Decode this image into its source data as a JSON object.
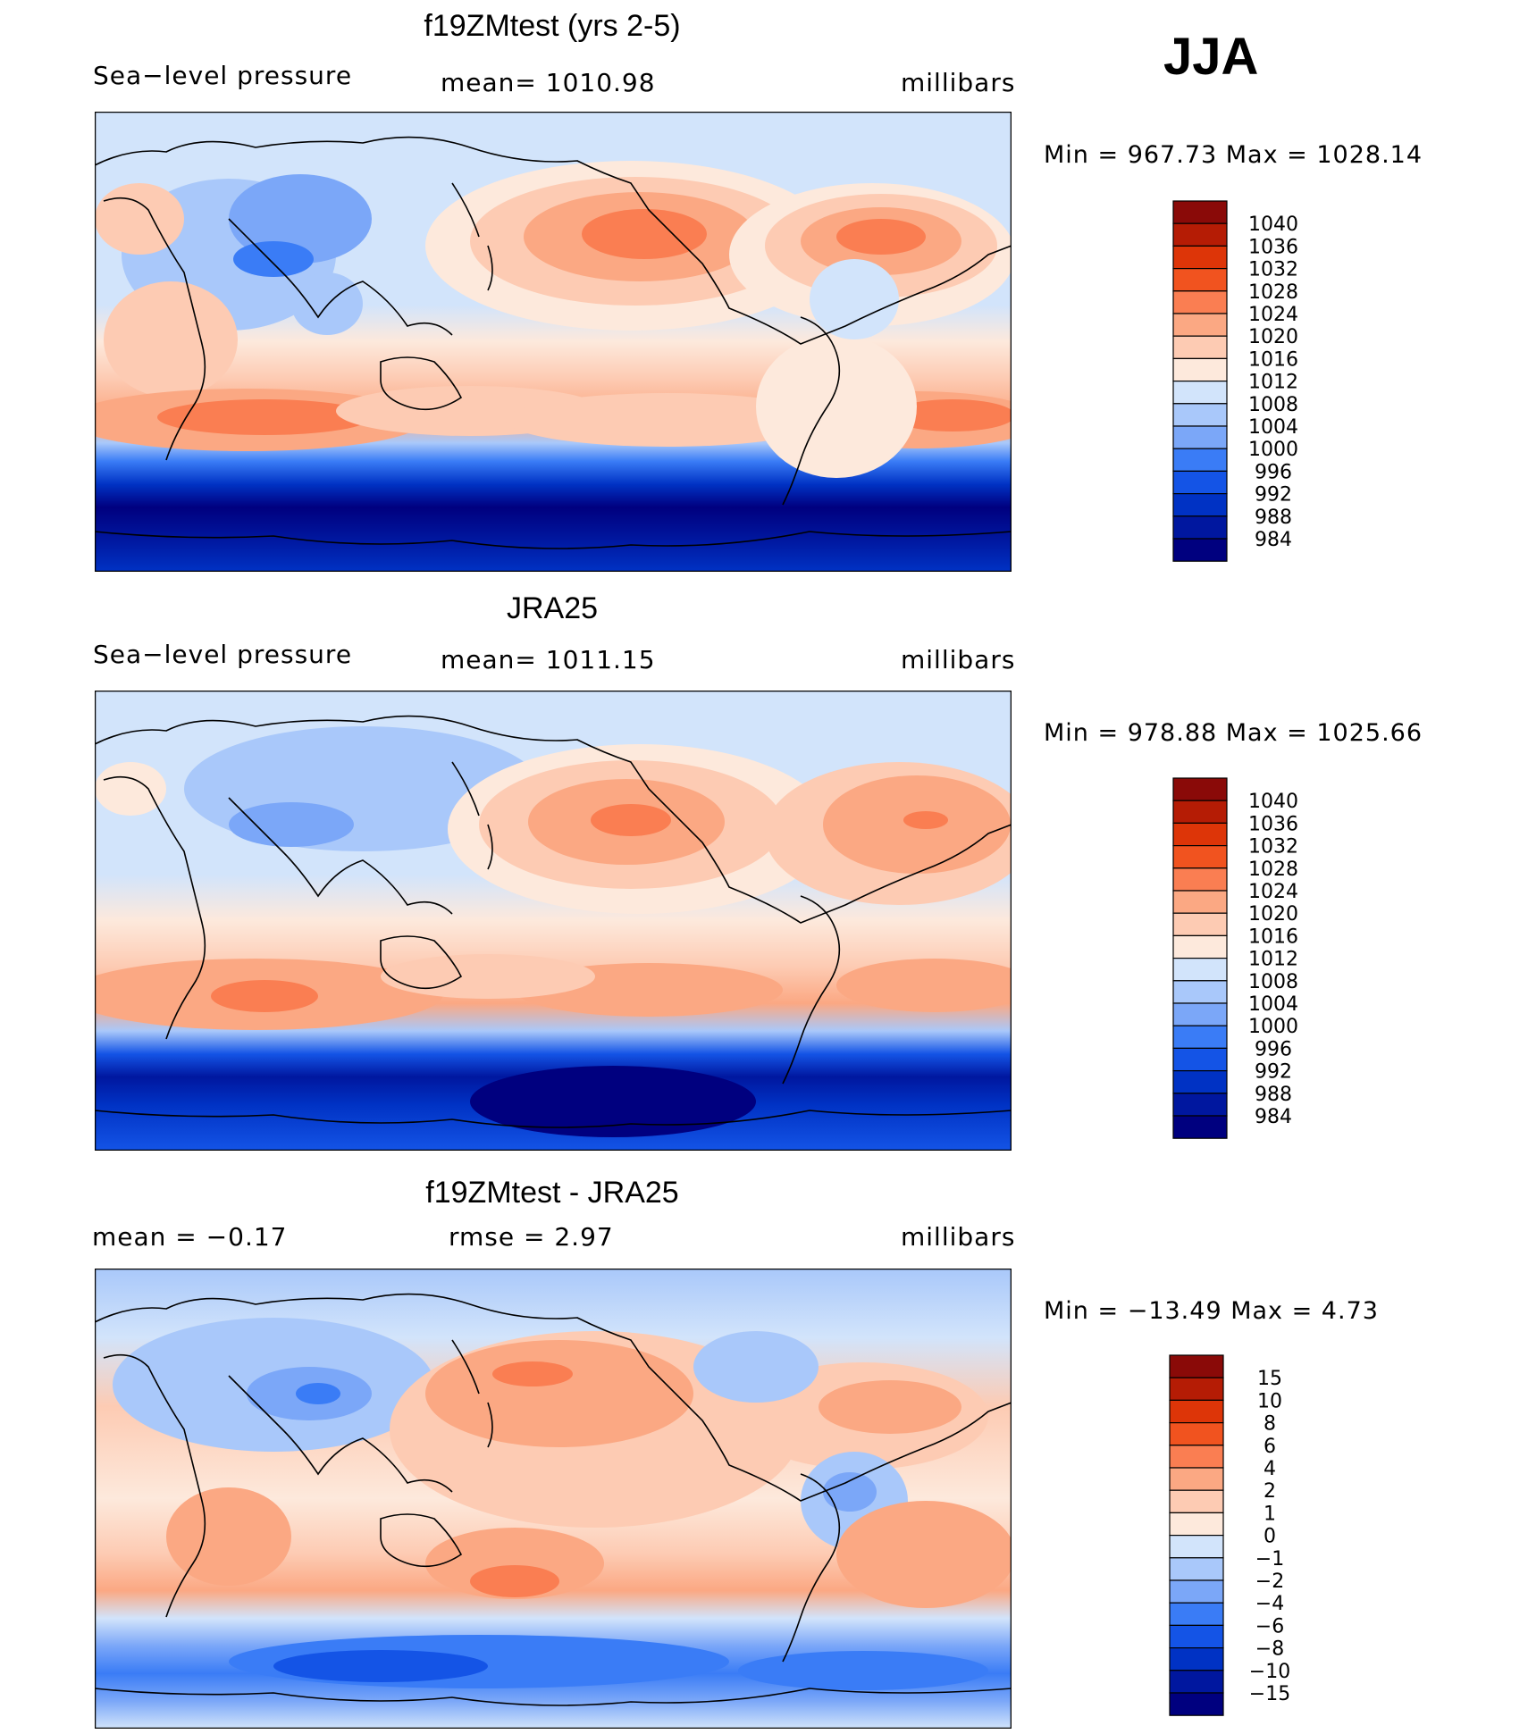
{
  "season": "JJA",
  "palettes": {
    "slp": [
      "#00007f",
      "#00179f",
      "#0032c4",
      "#1454e6",
      "#3a7cf6",
      "#7ba7f8",
      "#a9c8fa",
      "#d2e4fb",
      "#fde9dc",
      "#fdcbb3",
      "#fba883",
      "#fa7e52",
      "#f1531f",
      "#dd3508",
      "#b51c05",
      "#8a0a08"
    ],
    "diff": [
      "#00007f",
      "#00179f",
      "#0032c4",
      "#1454e6",
      "#3a7cf6",
      "#7ba7f8",
      "#a9c8fa",
      "#d2e4fb",
      "#fde9dc",
      "#fdcbb3",
      "#fba883",
      "#fa7e52",
      "#f1531f",
      "#dd3508",
      "#b51c05",
      "#8a0a08"
    ]
  },
  "panels": [
    {
      "title": "f19ZMtest (yrs 2-5)",
      "left_label": "Sea−level pressure",
      "center_label": "mean=  1010.98",
      "units": "millibars",
      "minmax": "Min  =  967.73  Max  =  1028.14",
      "colorbar": {
        "levels": [
          "1040",
          "1036",
          "1032",
          "1028",
          "1024",
          "1020",
          "1016",
          "1012",
          "1008",
          "1004",
          "1000",
          "996",
          "992",
          "988",
          "984"
        ]
      }
    },
    {
      "title": "JRA25",
      "left_label": "Sea−level pressure",
      "center_label": "mean=  1011.15",
      "units": "millibars",
      "minmax": "Min  =  978.88  Max  =  1025.66",
      "colorbar": {
        "levels": [
          "1040",
          "1036",
          "1032",
          "1028",
          "1024",
          "1020",
          "1016",
          "1012",
          "1008",
          "1004",
          "1000",
          "996",
          "992",
          "988",
          "984"
        ]
      }
    },
    {
      "title": "f19ZMtest - JRA25",
      "left_label": "mean  =    −0.17",
      "center_label": "rmse  =     2.97",
      "units": "millibars",
      "minmax": "Min  =  −13.49  Max  =      4.73",
      "colorbar": {
        "levels": [
          "15",
          "10",
          "8",
          "6",
          "4",
          "2",
          "1",
          "0",
          "−1",
          "−2",
          "−4",
          "−6",
          "−8",
          "−10",
          "−15"
        ]
      }
    }
  ]
}
